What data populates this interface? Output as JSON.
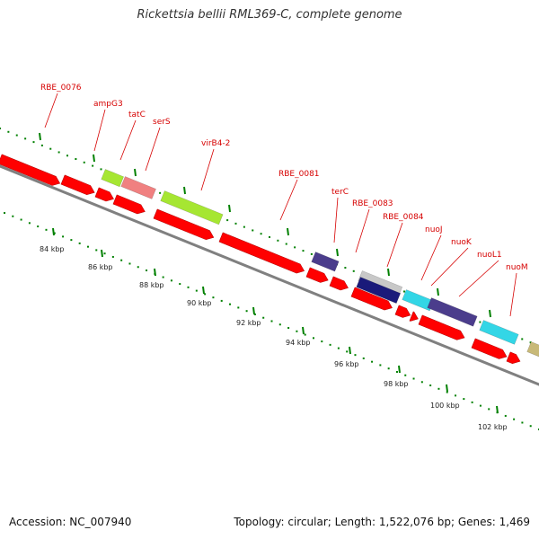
{
  "title": "Rickettsia bellii RML369-C, complete genome",
  "footer": {
    "accession": "Accession: NC_007940",
    "summary": "Topology: circular; Length: 1,522,076 bp; Genes: 1,469"
  },
  "colors": {
    "cds": "#ff0000",
    "backbone": "#808080",
    "ticks": "#008000",
    "label": "#d60000"
  },
  "kbp_ticks": [
    "84 kbp",
    "86 kbp",
    "88 kbp",
    "90 kbp",
    "92 kbp",
    "94 kbp",
    "96 kbp",
    "98 kbp",
    "100 kbp",
    "102 kbp"
  ],
  "gene_labels": [
    "RBE_0076",
    "ampG3",
    "tatC",
    "serS",
    "virB4-2",
    "RBE_0081",
    "terC",
    "RBE_0083",
    "RBE_0084",
    "nuoJ",
    "nuoK",
    "nuoL1",
    "nuoM"
  ],
  "gene_blocks": [
    {
      "name": "ampG3",
      "color": "#a6e632"
    },
    {
      "name": "tatC",
      "color": "#f08080"
    },
    {
      "name": "virB4-2",
      "color": "#a6e632"
    },
    {
      "name": "terC",
      "color": "#4b3d8c"
    },
    {
      "name": "RBE_0083-a",
      "color": "#c8c8c8"
    },
    {
      "name": "RBE_0083-b",
      "color": "#1a1a7a"
    },
    {
      "name": "nuoJ",
      "color": "#33d6e6"
    },
    {
      "name": "nuoK",
      "color": "#4b3d8c"
    },
    {
      "name": "nuoL1",
      "color": "#33d6e6"
    },
    {
      "name": "nuoM",
      "color": "#c8b978"
    }
  ]
}
